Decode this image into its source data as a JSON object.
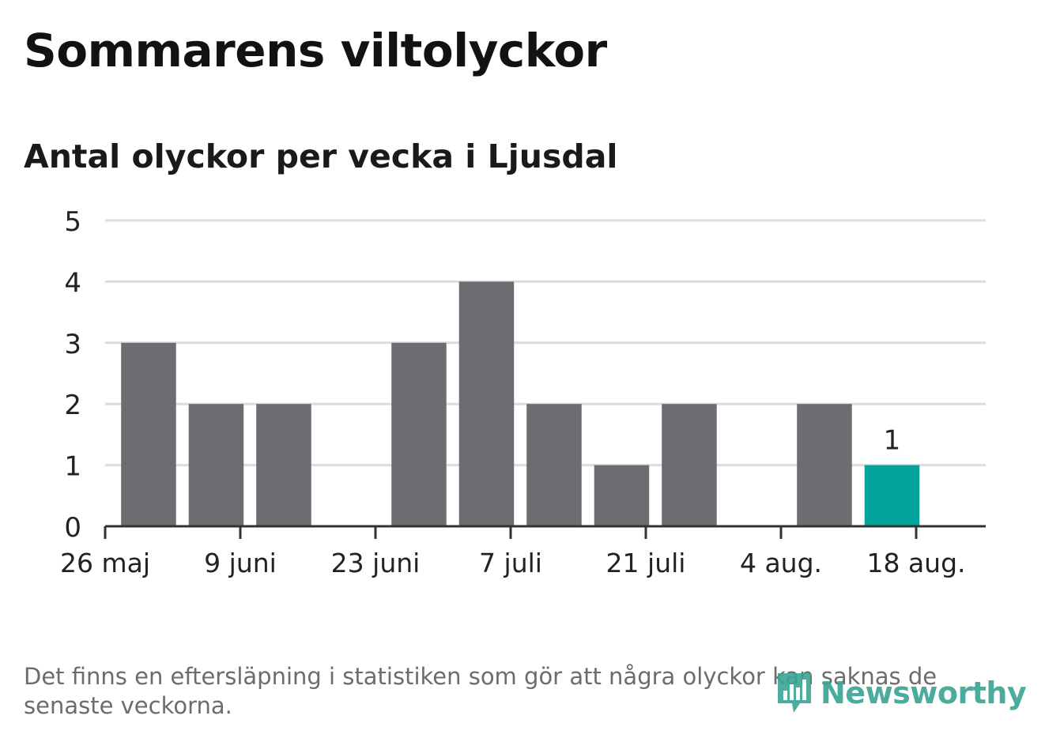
{
  "title": "Sommarens viltolyckor",
  "subtitle": "Antal olyckor per vecka i Ljusdal",
  "footnote": "Det finns en eftersläpning i statistiken som gör att några olyckor kan saknas de senaste veckorna.",
  "logo_text": "Newsworthy",
  "colors": {
    "bar": "#6d6c71",
    "highlight": "#00a49a",
    "grid": "#dcdcdc",
    "axis": "#333333",
    "logo": "#3aa595"
  },
  "chart_data": {
    "type": "bar",
    "title": "Sommarens viltolyckor",
    "subtitle": "Antal olyckor per vecka i Ljusdal",
    "xlabel": "",
    "ylabel": "",
    "ylim": [
      0,
      5
    ],
    "yticks": [
      0,
      1,
      2,
      3,
      4,
      5
    ],
    "x_start": "2019-05-26",
    "x_tick_labels": [
      "26 maj",
      "9 juni",
      "23 juni",
      "7 juli",
      "21 juli",
      "4 aug.",
      "18 aug."
    ],
    "weeks": [
      "2019-05-27",
      "2019-06-03",
      "2019-06-10",
      "2019-06-17",
      "2019-06-24",
      "2019-07-01",
      "2019-07-08",
      "2019-07-15",
      "2019-07-22",
      "2019-07-29",
      "2019-08-05",
      "2019-08-12"
    ],
    "values": [
      3,
      2,
      2,
      0,
      3,
      4,
      2,
      1,
      2,
      0,
      2,
      1
    ],
    "highlight_index": 11,
    "data_labels": [
      {
        "index": 11,
        "text": "1"
      }
    ],
    "grid": true,
    "legend": "none"
  }
}
